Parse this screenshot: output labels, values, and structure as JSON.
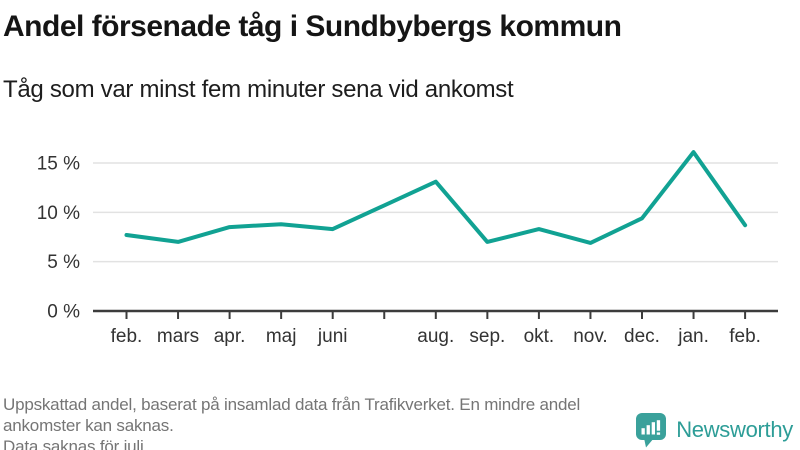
{
  "header": {
    "title": "Andel försenade tåg i Sundbybergs kommun",
    "subtitle": "Tåg som var minst fem minuter sena vid ankomst"
  },
  "chart_data": {
    "type": "line",
    "categories": [
      "feb.",
      "mars",
      "apr.",
      "maj",
      "juni",
      "",
      "aug.",
      "sep.",
      "okt.",
      "nov.",
      "dec.",
      "jan.",
      "feb."
    ],
    "values": [
      7.7,
      7.0,
      8.5,
      8.8,
      8.3,
      null,
      13.1,
      7.0,
      8.3,
      6.9,
      9.4,
      16.1,
      8.7
    ],
    "missing_category": "juli",
    "y_tick_labels": [
      "0 %",
      "5 %",
      "10 %",
      "15 %"
    ],
    "y_tick_values": [
      0,
      5,
      10,
      15
    ],
    "ylim": [
      0,
      17
    ],
    "unit": "%",
    "grid": true,
    "legend": "none",
    "line_color": "#11a293",
    "grid_color": "#e2e2e2",
    "axis_color": "#3c3c3c",
    "tick_label_color": "#333333"
  },
  "footer": {
    "lines": [
      "Uppskattad andel, baserat på insamlad data från Trafikverket. En mindre andel",
      "ankomster kan saknas.",
      "Data saknas för juli."
    ]
  },
  "logo": {
    "text": "Newsworthy",
    "icon": "bar-chart-speech-bubble",
    "icon_color": "#3aa19b",
    "text_color": "#2d9d97"
  }
}
